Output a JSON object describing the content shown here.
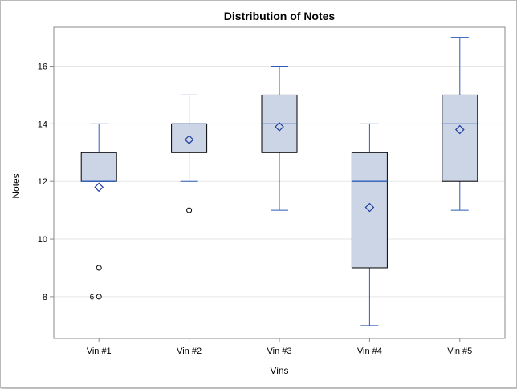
{
  "chart_data": {
    "type": "box",
    "title": "Distribution of Notes",
    "xlabel": "Vins",
    "ylabel": "Notes",
    "ylim": [
      6.55,
      17.35
    ],
    "yticks": [
      8,
      10,
      12,
      14,
      16
    ],
    "grid": true,
    "categories": [
      "Vin #1",
      "Vin #2",
      "Vin #3",
      "Vin #4",
      "Vin #5"
    ],
    "boxes": [
      {
        "category": "Vin #1",
        "whisker_low": 12,
        "q1": 12,
        "median": 12,
        "q3": 13,
        "whisker_high": 14,
        "mean": 11.8,
        "outliers": [
          {
            "value": 9,
            "label": ""
          },
          {
            "value": 8,
            "label": "6"
          }
        ]
      },
      {
        "category": "Vin #2",
        "whisker_low": 12,
        "q1": 13,
        "median": 14,
        "q3": 14,
        "whisker_high": 15,
        "mean": 13.45,
        "outliers": [
          {
            "value": 11,
            "label": ""
          }
        ]
      },
      {
        "category": "Vin #3",
        "whisker_low": 11,
        "q1": 13,
        "median": 14,
        "q3": 15,
        "whisker_high": 16,
        "mean": 13.9,
        "outliers": []
      },
      {
        "category": "Vin #4",
        "whisker_low": 7,
        "q1": 9,
        "median": 12,
        "q3": 13,
        "whisker_high": 14,
        "mean": 11.1,
        "outliers": []
      },
      {
        "category": "Vin #5",
        "whisker_low": 11,
        "q1": 12,
        "median": 14,
        "q3": 15,
        "whisker_high": 17,
        "mean": 13.8,
        "outliers": []
      }
    ],
    "colors": {
      "box_fill": "#cbd5e6",
      "box_outline": "#000000",
      "whisker": "#2d5bb8",
      "median": "#2d5bb8",
      "mean_marker": "#1f3f9f",
      "outlier": "#000000",
      "grid": "#e6e6e6",
      "axis": "#8a8a8a"
    }
  }
}
